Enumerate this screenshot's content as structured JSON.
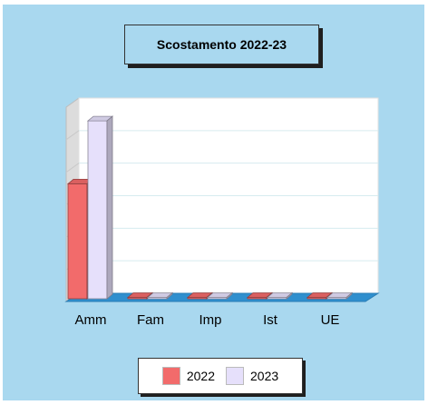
{
  "chart_data": {
    "type": "bar",
    "title": "Scostamento 2022-23",
    "categories": [
      "Amm",
      "Fam",
      "Imp",
      "Ist",
      "UE"
    ],
    "series": [
      {
        "name": "2022",
        "values": [
          5.3,
          0,
          0,
          0,
          0
        ],
        "color": "#f26b6b"
      },
      {
        "name": "2023",
        "values": [
          8.2,
          0,
          0,
          0,
          0
        ],
        "color": "#e6e0fb"
      }
    ],
    "ylim": [
      0,
      9
    ],
    "grid": true,
    "legend_position": "bottom"
  },
  "colors": {
    "background": "#a9d8ef",
    "plot_wall": "#ffffff",
    "side_wall": "#dcdcdc",
    "floor": "#2f8fce"
  }
}
